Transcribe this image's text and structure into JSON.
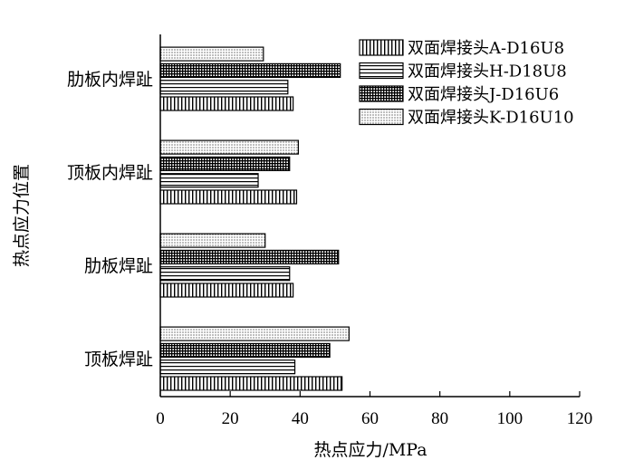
{
  "chart_data": {
    "type": "bar",
    "orientation": "horizontal",
    "categories": [
      "顶板焊趾",
      "肋板焊趾",
      "顶板内焊趾",
      "肋板内焊趾"
    ],
    "series": [
      {
        "name": "双面焊接头A-D16U8",
        "values": [
          52,
          38,
          39,
          38
        ],
        "pattern": "vertical-lines"
      },
      {
        "name": "双面焊接头H-D18U8",
        "values": [
          38.5,
          37,
          28,
          36.5
        ],
        "pattern": "horizontal-lines"
      },
      {
        "name": "双面焊接头J-D16U6",
        "values": [
          48.5,
          51,
          37,
          51.5
        ],
        "pattern": "grid"
      },
      {
        "name": "双面焊接头K-D16U10",
        "values": [
          54,
          30,
          39.5,
          29.5
        ],
        "pattern": "dots"
      }
    ],
    "xlabel": "热点应力/MPa",
    "ylabel": "热点应力位置",
    "xlim": [
      0,
      120
    ],
    "xticks": [
      0,
      20,
      40,
      60,
      80,
      100,
      120
    ],
    "grid": false,
    "legend_position": "top-right"
  }
}
